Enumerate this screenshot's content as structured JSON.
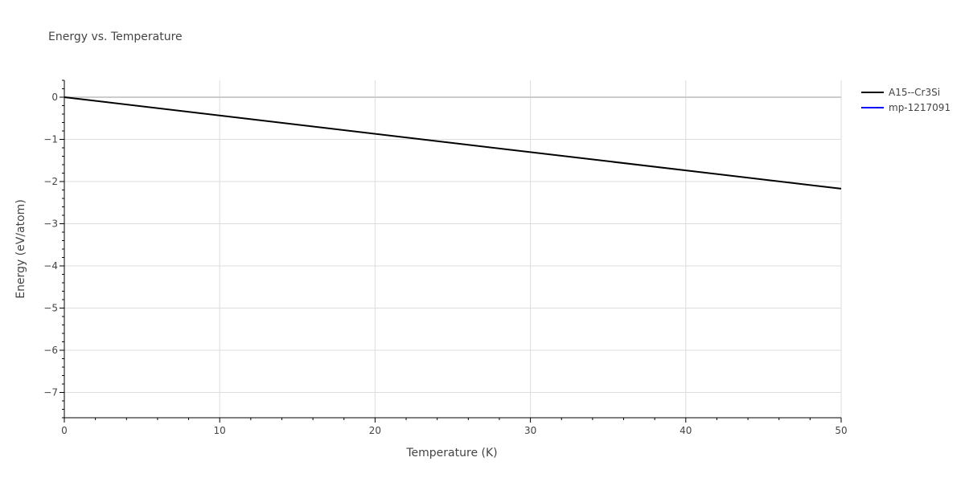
{
  "chart_data": {
    "type": "line",
    "title": "Energy vs. Temperature",
    "xlabel": "Temperature (K)",
    "ylabel": "Energy (eV/atom)",
    "xlim": [
      0,
      50
    ],
    "ylim": [
      -7.6,
      0.4
    ],
    "x_ticks": [
      0,
      10,
      20,
      30,
      40,
      50
    ],
    "x_tick_labels": [
      "0",
      "10",
      "20",
      "30",
      "40",
      "50"
    ],
    "y_ticks": [
      0,
      -1,
      -2,
      -3,
      -4,
      -5,
      -6,
      -7
    ],
    "y_tick_labels": [
      "0",
      "−1",
      "−2",
      "−3",
      "−4",
      "−5",
      "−6",
      "−7"
    ],
    "grid": true,
    "legend_position": "top-right",
    "series": [
      {
        "name": "A15--Cr3Si",
        "color": "#000000",
        "x": [
          0,
          50
        ],
        "y": [
          0,
          -2.17
        ]
      },
      {
        "name": "mp-1217091",
        "color": "#0000ff",
        "x": [],
        "y": []
      }
    ]
  }
}
